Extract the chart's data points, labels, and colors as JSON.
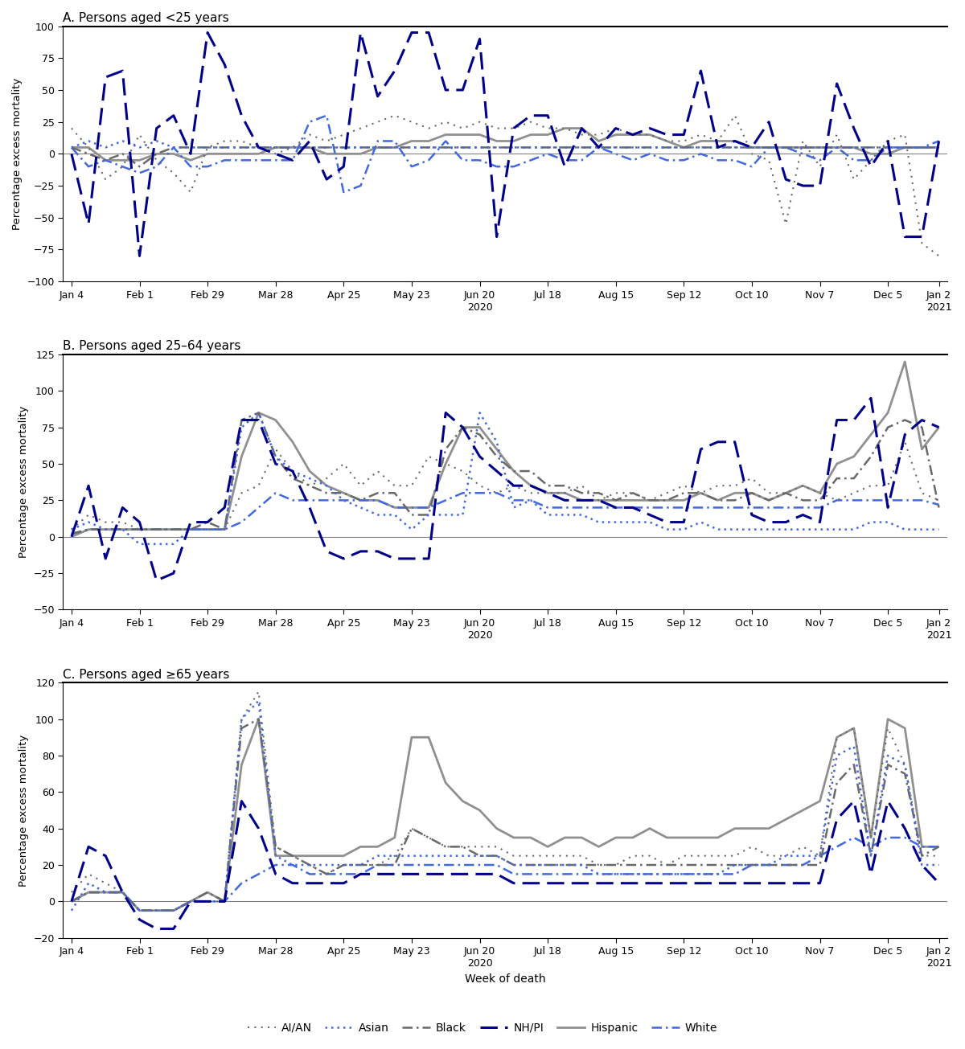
{
  "x_tick_pos": [
    0,
    4,
    8,
    12,
    16,
    20,
    24,
    28,
    32,
    36,
    40,
    44,
    48,
    51
  ],
  "x_tick_labels": [
    "Jan 4",
    "Feb 1",
    "Feb 29",
    "Mar 28",
    "Apr 25",
    "May 23",
    "Jun 20\n2020",
    "Jul 18",
    "Aug 15",
    "Sep 12",
    "Oct 10",
    "Nov 7",
    "Dec 5",
    "Jan 2\n2021"
  ],
  "n_weeks": 52,
  "panel_A": {
    "title": "A. Persons aged <25 years",
    "ylim": [
      -100,
      100
    ],
    "yticks": [
      -100,
      -75,
      -50,
      -25,
      0,
      25,
      50,
      75,
      100
    ],
    "ylabel": "Percentage excess mortality",
    "AI_AN": [
      20,
      5,
      -20,
      -10,
      15,
      -5,
      -15,
      -30,
      5,
      10,
      10,
      5,
      0,
      5,
      15,
      10,
      15,
      20,
      25,
      30,
      25,
      20,
      25,
      20,
      25,
      20,
      20,
      25,
      20,
      20,
      15,
      15,
      20,
      15,
      15,
      10,
      10,
      15,
      10,
      30,
      0,
      -5,
      -55,
      10,
      -10,
      15,
      -20,
      -5,
      10,
      15,
      -70,
      -80
    ],
    "Asian": [
      5,
      10,
      5,
      10,
      5,
      10,
      5,
      5,
      5,
      5,
      5,
      5,
      5,
      5,
      5,
      5,
      5,
      5,
      5,
      5,
      5,
      5,
      5,
      5,
      5,
      5,
      5,
      5,
      5,
      5,
      5,
      5,
      5,
      5,
      5,
      5,
      5,
      5,
      5,
      5,
      5,
      5,
      5,
      5,
      5,
      5,
      5,
      5,
      5,
      5,
      5,
      5
    ],
    "Black": [
      5,
      0,
      -5,
      0,
      -10,
      0,
      5,
      5,
      5,
      5,
      5,
      5,
      5,
      5,
      5,
      5,
      5,
      5,
      5,
      5,
      5,
      5,
      5,
      5,
      5,
      5,
      5,
      5,
      5,
      5,
      5,
      5,
      5,
      5,
      5,
      5,
      5,
      5,
      5,
      5,
      5,
      5,
      5,
      5,
      5,
      5,
      5,
      5,
      5,
      5,
      5,
      5
    ],
    "NH_PI": [
      0,
      -55,
      60,
      65,
      -80,
      20,
      30,
      0,
      95,
      70,
      30,
      5,
      0,
      -5,
      10,
      -20,
      -10,
      95,
      45,
      65,
      95,
      95,
      50,
      50,
      90,
      -65,
      20,
      30,
      30,
      -10,
      20,
      5,
      20,
      15,
      20,
      15,
      15,
      65,
      5,
      10,
      5,
      25,
      -20,
      -25,
      -25,
      55,
      20,
      -10,
      10,
      -65,
      -65,
      10
    ],
    "Hispanic": [
      5,
      5,
      -5,
      -5,
      -5,
      0,
      0,
      -5,
      0,
      0,
      0,
      0,
      5,
      5,
      5,
      0,
      0,
      0,
      5,
      5,
      10,
      10,
      15,
      15,
      15,
      10,
      10,
      15,
      15,
      20,
      20,
      10,
      15,
      15,
      15,
      10,
      5,
      10,
      10,
      10,
      5,
      5,
      5,
      5,
      5,
      5,
      5,
      0,
      0,
      5,
      5,
      5
    ],
    "White": [
      5,
      -10,
      -5,
      -10,
      -15,
      -10,
      5,
      -10,
      -10,
      -5,
      -5,
      -5,
      -5,
      -5,
      25,
      30,
      -30,
      -25,
      10,
      10,
      -10,
      -5,
      10,
      -5,
      -5,
      -10,
      -10,
      -5,
      0,
      -5,
      -5,
      5,
      0,
      -5,
      0,
      -5,
      -5,
      0,
      -5,
      -5,
      -10,
      5,
      5,
      0,
      -5,
      5,
      -5,
      -5,
      5,
      5,
      5,
      10
    ]
  },
  "panel_B": {
    "title": "B. Persons aged 25–64 years",
    "ylim": [
      -50,
      125
    ],
    "yticks": [
      -50,
      -25,
      0,
      25,
      50,
      75,
      100,
      125
    ],
    "ylabel": "Percentage excess mortality",
    "AI_AN": [
      5,
      15,
      10,
      10,
      5,
      5,
      5,
      5,
      5,
      5,
      30,
      35,
      60,
      45,
      35,
      40,
      50,
      35,
      45,
      35,
      35,
      55,
      50,
      45,
      35,
      30,
      35,
      30,
      30,
      30,
      35,
      25,
      30,
      30,
      25,
      30,
      35,
      30,
      35,
      35,
      40,
      30,
      30,
      35,
      30,
      25,
      30,
      35,
      35,
      65,
      30,
      25
    ],
    "Asian": [
      5,
      10,
      5,
      5,
      -5,
      -5,
      -5,
      5,
      5,
      5,
      75,
      85,
      55,
      45,
      40,
      35,
      25,
      20,
      15,
      15,
      5,
      15,
      15,
      15,
      85,
      65,
      20,
      25,
      15,
      15,
      15,
      10,
      10,
      10,
      10,
      5,
      5,
      10,
      5,
      5,
      5,
      5,
      5,
      5,
      5,
      5,
      5,
      10,
      10,
      5,
      5,
      5
    ],
    "Black": [
      2,
      5,
      5,
      5,
      5,
      5,
      5,
      5,
      10,
      5,
      80,
      85,
      55,
      40,
      35,
      30,
      30,
      25,
      30,
      30,
      15,
      15,
      60,
      75,
      70,
      55,
      45,
      45,
      35,
      35,
      30,
      30,
      25,
      30,
      25,
      25,
      30,
      30,
      25,
      25,
      30,
      25,
      30,
      25,
      25,
      40,
      40,
      55,
      75,
      80,
      75,
      20
    ],
    "NH_PI": [
      0,
      35,
      -15,
      20,
      10,
      -30,
      -25,
      10,
      10,
      20,
      80,
      80,
      50,
      45,
      20,
      -10,
      -15,
      -10,
      -10,
      -15,
      -15,
      -15,
      85,
      75,
      55,
      45,
      35,
      35,
      30,
      25,
      25,
      25,
      20,
      20,
      15,
      10,
      10,
      60,
      65,
      65,
      15,
      10,
      10,
      15,
      10,
      80,
      80,
      95,
      20,
      70,
      80,
      75
    ],
    "Hispanic": [
      0,
      5,
      5,
      5,
      5,
      5,
      5,
      5,
      5,
      5,
      55,
      85,
      80,
      65,
      45,
      35,
      30,
      25,
      25,
      20,
      20,
      20,
      50,
      75,
      75,
      60,
      45,
      35,
      30,
      30,
      25,
      25,
      25,
      25,
      25,
      25,
      25,
      30,
      25,
      30,
      30,
      25,
      30,
      35,
      30,
      50,
      55,
      70,
      85,
      120,
      60,
      75
    ],
    "White": [
      2,
      5,
      5,
      5,
      5,
      5,
      5,
      5,
      5,
      5,
      10,
      20,
      30,
      25,
      25,
      25,
      25,
      25,
      25,
      20,
      20,
      20,
      25,
      30,
      30,
      30,
      25,
      25,
      20,
      20,
      20,
      20,
      20,
      20,
      20,
      20,
      20,
      20,
      20,
      20,
      20,
      20,
      20,
      20,
      20,
      25,
      25,
      25,
      25,
      25,
      25,
      22
    ]
  },
  "panel_C": {
    "title": "C. Persons aged ≥65 years",
    "ylim": [
      -20,
      120
    ],
    "yticks": [
      -20,
      0,
      20,
      40,
      60,
      80,
      100,
      120
    ],
    "ylabel": "Percentage excess mortality",
    "xlabel": "Week of death",
    "AI_AN": [
      5,
      15,
      10,
      5,
      -5,
      -5,
      -5,
      0,
      0,
      0,
      100,
      115,
      30,
      25,
      20,
      15,
      20,
      20,
      20,
      25,
      40,
      35,
      30,
      30,
      30,
      30,
      25,
      25,
      25,
      25,
      25,
      20,
      20,
      25,
      25,
      20,
      25,
      25,
      25,
      25,
      30,
      25,
      25,
      30,
      25,
      90,
      95,
      35,
      95,
      75,
      25,
      25
    ],
    "Asian": [
      -5,
      10,
      5,
      5,
      -5,
      -5,
      -5,
      0,
      0,
      0,
      100,
      110,
      25,
      20,
      20,
      20,
      20,
      20,
      25,
      25,
      25,
      25,
      25,
      25,
      25,
      25,
      20,
      20,
      20,
      20,
      20,
      15,
      15,
      15,
      15,
      15,
      15,
      15,
      15,
      20,
      20,
      20,
      25,
      25,
      25,
      80,
      85,
      25,
      80,
      75,
      20,
      20
    ],
    "Black": [
      0,
      5,
      5,
      5,
      -5,
      -5,
      -5,
      0,
      5,
      0,
      95,
      100,
      30,
      25,
      20,
      15,
      20,
      20,
      20,
      20,
      40,
      35,
      30,
      30,
      25,
      25,
      20,
      20,
      20,
      20,
      20,
      20,
      20,
      20,
      20,
      20,
      20,
      20,
      20,
      20,
      20,
      20,
      20,
      20,
      20,
      65,
      75,
      25,
      75,
      70,
      25,
      30
    ],
    "NH_PI": [
      0,
      30,
      25,
      5,
      -10,
      -15,
      -15,
      0,
      0,
      0,
      55,
      40,
      15,
      10,
      10,
      10,
      10,
      15,
      15,
      15,
      15,
      15,
      15,
      15,
      15,
      15,
      10,
      10,
      10,
      10,
      10,
      10,
      10,
      10,
      10,
      10,
      10,
      10,
      10,
      10,
      10,
      10,
      10,
      10,
      10,
      45,
      55,
      15,
      55,
      40,
      20,
      10
    ],
    "Hispanic": [
      0,
      5,
      5,
      5,
      -5,
      -5,
      -5,
      0,
      5,
      0,
      75,
      100,
      25,
      25,
      25,
      25,
      25,
      30,
      30,
      35,
      90,
      90,
      65,
      55,
      50,
      40,
      35,
      35,
      30,
      35,
      35,
      30,
      35,
      35,
      40,
      35,
      35,
      35,
      35,
      40,
      40,
      40,
      45,
      50,
      55,
      90,
      95,
      35,
      100,
      95,
      30,
      30
    ],
    "White": [
      0,
      5,
      5,
      5,
      -5,
      -5,
      -5,
      0,
      0,
      0,
      10,
      15,
      20,
      20,
      15,
      15,
      15,
      15,
      20,
      20,
      20,
      20,
      20,
      20,
      20,
      20,
      15,
      15,
      15,
      15,
      15,
      15,
      15,
      15,
      15,
      15,
      15,
      15,
      15,
      15,
      20,
      20,
      20,
      20,
      25,
      30,
      35,
      30,
      35,
      35,
      30,
      30
    ]
  },
  "series_order": [
    "Hispanic",
    "Black",
    "AI_AN",
    "Asian",
    "White",
    "NH_PI"
  ],
  "series": [
    "AI_AN",
    "Asian",
    "Black",
    "NH_PI",
    "Hispanic",
    "White"
  ],
  "legend_labels": [
    "AI/AN",
    "Asian",
    "Black",
    "NH/PI",
    "Hispanic",
    "White"
  ],
  "line_styles": {
    "AI_AN": {
      "color": "#696969",
      "lw": 1.5,
      "ls": "dotted",
      "dash": [
        1,
        3
      ]
    },
    "Asian": {
      "color": "#4169E1",
      "lw": 1.8,
      "ls": "dotted",
      "dash": [
        1,
        2
      ]
    },
    "Black": {
      "color": "#696969",
      "lw": 1.8,
      "ls": "dashdot",
      "dash": [
        5,
        2,
        1,
        2
      ]
    },
    "NH_PI": {
      "color": "#00008B",
      "lw": 2.2,
      "ls": "dashed",
      "dash": [
        7,
        3
      ]
    },
    "Hispanic": {
      "color": "#909090",
      "lw": 2.0,
      "ls": "solid",
      "dash": []
    },
    "White": {
      "color": "#4169E1",
      "lw": 1.8,
      "ls": "dashdot",
      "dash": [
        5,
        2,
        1,
        2
      ]
    }
  }
}
